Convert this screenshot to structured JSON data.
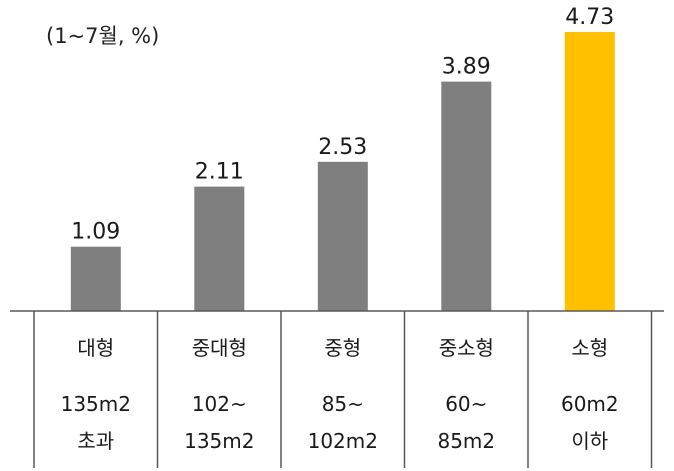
{
  "chart_data": {
    "type": "bar",
    "unit_note": "(1~7월, %)",
    "categories": [
      "대형",
      "중대형",
      "중형",
      "중소형",
      "소형"
    ],
    "sublabels": [
      [
        "135m2",
        "초과"
      ],
      [
        "102~",
        "135m2"
      ],
      [
        "85~",
        "102m2"
      ],
      [
        "60~",
        "85m2"
      ],
      [
        "60m2",
        "이하"
      ]
    ],
    "values": [
      1.09,
      2.11,
      2.53,
      3.89,
      4.73
    ],
    "value_labels": [
      "1.09",
      "2.11",
      "2.53",
      "3.89",
      "4.73"
    ],
    "colors": [
      "#7f7f7f",
      "#7f7f7f",
      "#7f7f7f",
      "#7f7f7f",
      "#ffc000"
    ],
    "highlight_index": 4,
    "ylim": [
      0,
      4.9
    ],
    "grid": false,
    "legend": "none"
  }
}
